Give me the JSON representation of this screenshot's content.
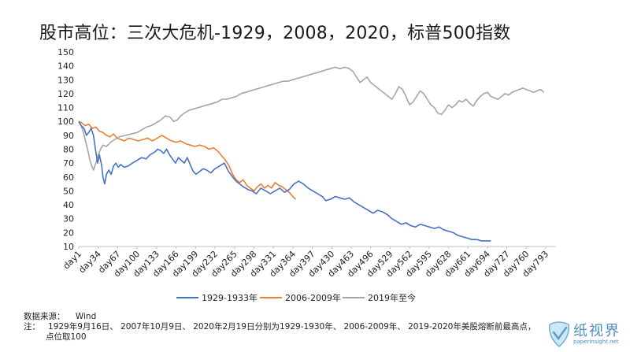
{
  "title": "股市高位：三次大危机-1929，2008，2020，标普500指数",
  "notes": {
    "source_label": "数据来源：",
    "source_value": "Wind",
    "note_label": "注：",
    "note_text": "1929年9月16日、 2007年10月9日、 2020年2月19日分别为1929-1930年、 2006-2009年、 2019-2020年美股熔断前最高点，",
    "note_text2": "点位取100"
  },
  "logo": {
    "text": "纸视界",
    "url": "paperinsight.net"
  },
  "colors": {
    "s1929": "#4472C4",
    "s2008": "#ED7D31",
    "s2020": "#A5A5A5"
  },
  "chart_data": {
    "type": "line",
    "title": "股市高位：三次大危机-1929，2008，2020，标普500指数",
    "xlabel": "",
    "ylabel": "",
    "ylim": [
      10,
      150
    ],
    "yticks": [
      10,
      20,
      30,
      40,
      50,
      60,
      70,
      80,
      90,
      100,
      110,
      120,
      130,
      140,
      150
    ],
    "x_tick_labels": [
      "day1",
      "day34",
      "day67",
      "day100",
      "day133",
      "day166",
      "day199",
      "day232",
      "day265",
      "day298",
      "day331",
      "day364",
      "day397",
      "day430",
      "day463",
      "day496",
      "day529",
      "day562",
      "day595",
      "day628",
      "day661",
      "day694",
      "day727",
      "day760",
      "day793"
    ],
    "x_tick_days": [
      1,
      34,
      67,
      100,
      133,
      166,
      199,
      232,
      265,
      298,
      331,
      364,
      397,
      430,
      463,
      496,
      529,
      562,
      595,
      628,
      661,
      694,
      727,
      760,
      793
    ],
    "xlim": [
      1,
      805
    ],
    "grid": false,
    "legend_position": "bottom",
    "series": [
      {
        "name": "1929-1933年",
        "color": "#4472C4",
        "points": [
          [
            1,
            100
          ],
          [
            5,
            97
          ],
          [
            10,
            95
          ],
          [
            14,
            90
          ],
          [
            18,
            92
          ],
          [
            22,
            95
          ],
          [
            26,
            90
          ],
          [
            30,
            78
          ],
          [
            33,
            70
          ],
          [
            36,
            76
          ],
          [
            40,
            68
          ],
          [
            42,
            60
          ],
          [
            45,
            55
          ],
          [
            48,
            62
          ],
          [
            52,
            65
          ],
          [
            56,
            62
          ],
          [
            60,
            68
          ],
          [
            64,
            70
          ],
          [
            68,
            67
          ],
          [
            72,
            69
          ],
          [
            78,
            67
          ],
          [
            85,
            68
          ],
          [
            92,
            70
          ],
          [
            100,
            72
          ],
          [
            108,
            74
          ],
          [
            115,
            73
          ],
          [
            122,
            76
          ],
          [
            130,
            78
          ],
          [
            135,
            80
          ],
          [
            140,
            79
          ],
          [
            145,
            77
          ],
          [
            150,
            80
          ],
          [
            155,
            76
          ],
          [
            160,
            73
          ],
          [
            165,
            70
          ],
          [
            170,
            74
          ],
          [
            175,
            72
          ],
          [
            180,
            70
          ],
          [
            185,
            74
          ],
          [
            190,
            69
          ],
          [
            195,
            64
          ],
          [
            200,
            62
          ],
          [
            206,
            64
          ],
          [
            212,
            66
          ],
          [
            218,
            65
          ],
          [
            225,
            63
          ],
          [
            232,
            66
          ],
          [
            240,
            68
          ],
          [
            248,
            70
          ],
          [
            255,
            64
          ],
          [
            262,
            60
          ],
          [
            268,
            57
          ],
          [
            274,
            55
          ],
          [
            280,
            53
          ],
          [
            288,
            51
          ],
          [
            295,
            50
          ],
          [
            302,
            48
          ],
          [
            310,
            52
          ],
          [
            318,
            50
          ],
          [
            326,
            48
          ],
          [
            334,
            50
          ],
          [
            342,
            52
          ],
          [
            350,
            49
          ],
          [
            358,
            51
          ],
          [
            366,
            55
          ],
          [
            374,
            57
          ],
          [
            382,
            55
          ],
          [
            390,
            52
          ],
          [
            398,
            50
          ],
          [
            406,
            48
          ],
          [
            414,
            46
          ],
          [
            420,
            43
          ],
          [
            428,
            44
          ],
          [
            436,
            46
          ],
          [
            444,
            45
          ],
          [
            452,
            44
          ],
          [
            460,
            45
          ],
          [
            468,
            42
          ],
          [
            476,
            40
          ],
          [
            484,
            38
          ],
          [
            492,
            36
          ],
          [
            500,
            34
          ],
          [
            508,
            36
          ],
          [
            516,
            35
          ],
          [
            524,
            33
          ],
          [
            532,
            30
          ],
          [
            540,
            28
          ],
          [
            548,
            26
          ],
          [
            556,
            27
          ],
          [
            564,
            25
          ],
          [
            572,
            24
          ],
          [
            580,
            26
          ],
          [
            588,
            25
          ],
          [
            596,
            24
          ],
          [
            604,
            23
          ],
          [
            612,
            24
          ],
          [
            620,
            22
          ],
          [
            628,
            21
          ],
          [
            636,
            20
          ],
          [
            644,
            18
          ],
          [
            652,
            17
          ],
          [
            660,
            16
          ],
          [
            668,
            15
          ],
          [
            676,
            15
          ],
          [
            684,
            14
          ],
          [
            692,
            14
          ],
          [
            700,
            14
          ]
        ]
      },
      {
        "name": "2006-2009年",
        "color": "#ED7D31",
        "points": [
          [
            1,
            100
          ],
          [
            6,
            99
          ],
          [
            12,
            97
          ],
          [
            18,
            98
          ],
          [
            24,
            95
          ],
          [
            30,
            96
          ],
          [
            36,
            93
          ],
          [
            42,
            92
          ],
          [
            48,
            90
          ],
          [
            54,
            89
          ],
          [
            60,
            91
          ],
          [
            66,
            88
          ],
          [
            72,
            87
          ],
          [
            78,
            86
          ],
          [
            86,
            88
          ],
          [
            94,
            87
          ],
          [
            102,
            86
          ],
          [
            110,
            87
          ],
          [
            118,
            88
          ],
          [
            126,
            86
          ],
          [
            134,
            88
          ],
          [
            142,
            90
          ],
          [
            150,
            88
          ],
          [
            158,
            86
          ],
          [
            166,
            85
          ],
          [
            174,
            86
          ],
          [
            182,
            84
          ],
          [
            190,
            83
          ],
          [
            198,
            82
          ],
          [
            206,
            83
          ],
          [
            214,
            82
          ],
          [
            222,
            80
          ],
          [
            230,
            81
          ],
          [
            238,
            78
          ],
          [
            244,
            75
          ],
          [
            250,
            72
          ],
          [
            256,
            68
          ],
          [
            262,
            62
          ],
          [
            268,
            58
          ],
          [
            274,
            56
          ],
          [
            280,
            58
          ],
          [
            286,
            54
          ],
          [
            292,
            52
          ],
          [
            298,
            50
          ],
          [
            304,
            53
          ],
          [
            310,
            55
          ],
          [
            316,
            52
          ],
          [
            322,
            54
          ],
          [
            328,
            52
          ],
          [
            334,
            56
          ],
          [
            340,
            54
          ],
          [
            346,
            53
          ],
          [
            352,
            51
          ],
          [
            358,
            49
          ],
          [
            364,
            46
          ],
          [
            369,
            44
          ]
        ]
      },
      {
        "name": "2019年至今",
        "color": "#A5A5A5",
        "points": [
          [
            1,
            100
          ],
          [
            5,
            97
          ],
          [
            9,
            92
          ],
          [
            13,
            85
          ],
          [
            17,
            78
          ],
          [
            20,
            72
          ],
          [
            23,
            68
          ],
          [
            26,
            65
          ],
          [
            30,
            70
          ],
          [
            34,
            76
          ],
          [
            38,
            80
          ],
          [
            42,
            83
          ],
          [
            48,
            82
          ],
          [
            55,
            85
          ],
          [
            62,
            87
          ],
          [
            70,
            89
          ],
          [
            80,
            90
          ],
          [
            90,
            91
          ],
          [
            100,
            92
          ],
          [
            108,
            94
          ],
          [
            116,
            96
          ],
          [
            124,
            97
          ],
          [
            132,
            99
          ],
          [
            140,
            101
          ],
          [
            148,
            104
          ],
          [
            156,
            103
          ],
          [
            162,
            100
          ],
          [
            168,
            101
          ],
          [
            174,
            104
          ],
          [
            180,
            106
          ],
          [
            188,
            108
          ],
          [
            196,
            109
          ],
          [
            204,
            110
          ],
          [
            212,
            111
          ],
          [
            220,
            112
          ],
          [
            228,
            113
          ],
          [
            236,
            114
          ],
          [
            244,
            116
          ],
          [
            252,
            116
          ],
          [
            260,
            117
          ],
          [
            268,
            118
          ],
          [
            276,
            120
          ],
          [
            284,
            121
          ],
          [
            292,
            122
          ],
          [
            300,
            123
          ],
          [
            308,
            124
          ],
          [
            316,
            125
          ],
          [
            324,
            126
          ],
          [
            332,
            127
          ],
          [
            340,
            128
          ],
          [
            348,
            129
          ],
          [
            356,
            129
          ],
          [
            364,
            130
          ],
          [
            372,
            131
          ],
          [
            380,
            132
          ],
          [
            388,
            133
          ],
          [
            396,
            134
          ],
          [
            404,
            135
          ],
          [
            412,
            136
          ],
          [
            420,
            137
          ],
          [
            428,
            138
          ],
          [
            436,
            139
          ],
          [
            444,
            138
          ],
          [
            452,
            139
          ],
          [
            460,
            138
          ],
          [
            466,
            136
          ],
          [
            472,
            132
          ],
          [
            478,
            128
          ],
          [
            484,
            130
          ],
          [
            490,
            132
          ],
          [
            496,
            128
          ],
          [
            502,
            126
          ],
          [
            508,
            124
          ],
          [
            514,
            122
          ],
          [
            520,
            120
          ],
          [
            526,
            118
          ],
          [
            532,
            116
          ],
          [
            538,
            120
          ],
          [
            544,
            125
          ],
          [
            550,
            123
          ],
          [
            556,
            118
          ],
          [
            562,
            112
          ],
          [
            568,
            114
          ],
          [
            574,
            118
          ],
          [
            580,
            122
          ],
          [
            586,
            120
          ],
          [
            592,
            116
          ],
          [
            598,
            112
          ],
          [
            604,
            110
          ],
          [
            610,
            106
          ],
          [
            616,
            105
          ],
          [
            622,
            108
          ],
          [
            628,
            112
          ],
          [
            634,
            110
          ],
          [
            640,
            112
          ],
          [
            646,
            115
          ],
          [
            652,
            114
          ],
          [
            658,
            116
          ],
          [
            664,
            113
          ],
          [
            670,
            111
          ],
          [
            676,
            115
          ],
          [
            682,
            118
          ],
          [
            688,
            120
          ],
          [
            694,
            121
          ],
          [
            700,
            118
          ],
          [
            706,
            117
          ],
          [
            712,
            116
          ],
          [
            718,
            118
          ],
          [
            724,
            120
          ],
          [
            730,
            119
          ],
          [
            736,
            121
          ],
          [
            742,
            122
          ],
          [
            748,
            123
          ],
          [
            754,
            124
          ],
          [
            760,
            123
          ],
          [
            766,
            122
          ],
          [
            772,
            121
          ],
          [
            778,
            122
          ],
          [
            784,
            123
          ],
          [
            790,
            121
          ]
        ]
      }
    ]
  }
}
